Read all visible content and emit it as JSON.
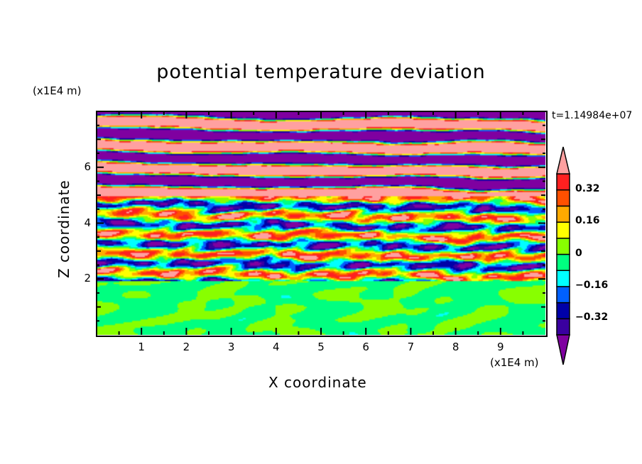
{
  "chart_data": {
    "type": "heatmap",
    "title": "potential temperature deviation",
    "xlabel": "X coordinate",
    "ylabel": "Z coordinate",
    "x_units": "(x1E4 m)",
    "y_units": "(x1E4 m)",
    "xlim": [
      0,
      10
    ],
    "ylim": [
      0,
      8
    ],
    "x_ticks": [
      "1",
      "2",
      "3",
      "4",
      "5",
      "6",
      "7",
      "8",
      "9"
    ],
    "y_ticks": [
      "2",
      "4",
      "6"
    ],
    "time_label": "t=1.14984e+07",
    "colorbar": {
      "levels": [
        -0.4,
        -0.32,
        -0.24,
        -0.16,
        -0.08,
        0,
        0.08,
        0.16,
        0.24,
        0.32,
        0.4
      ],
      "tick_labels": [
        "0.32",
        "0.16",
        "0",
        "−0.16",
        "−0.32"
      ],
      "tick_values": [
        0.32,
        0.16,
        0,
        -0.16,
        -0.32
      ],
      "colors": [
        "#7f00a0",
        "#3a00a0",
        "#0000a8",
        "#0060ff",
        "#00ffff",
        "#00ff80",
        "#88ff00",
        "#ffff00",
        "#ffaa00",
        "#ff5000",
        "#ff2020",
        "#ffa0a0"
      ],
      "extend": "both"
    },
    "description_bands": [
      {
        "z_range": [
          0,
          2
        ],
        "dominant_values": [
          -0.04,
          0.04
        ]
      },
      {
        "z_range": [
          2,
          5
        ],
        "dominant_values": "mixed"
      },
      {
        "z_range": [
          5,
          8
        ],
        "dominant_values": [
          -0.44,
          0.44
        ]
      }
    ]
  }
}
